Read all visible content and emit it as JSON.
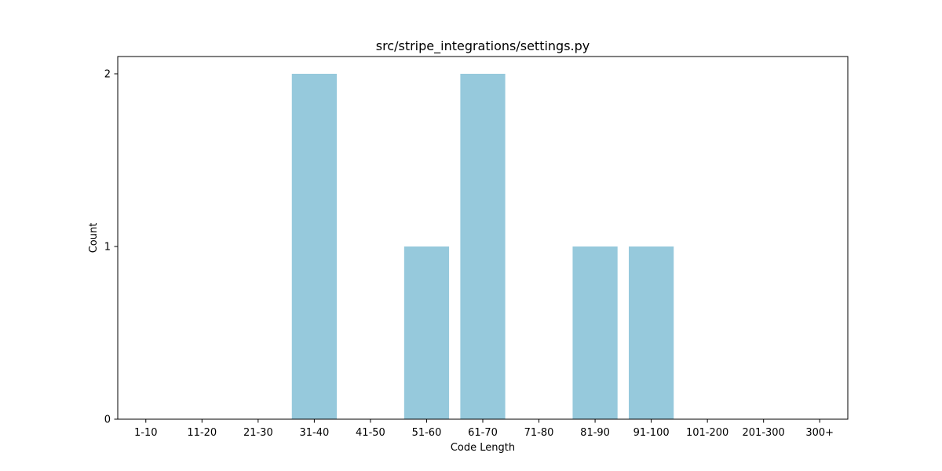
{
  "chart_data": {
    "type": "bar",
    "title": "src/stripe_integrations/settings.py",
    "xlabel": "Code Length",
    "ylabel": "Count",
    "categories": [
      "1-10",
      "11-20",
      "21-30",
      "31-40",
      "41-50",
      "51-60",
      "61-70",
      "71-80",
      "81-90",
      "91-100",
      "101-200",
      "201-300",
      "300+"
    ],
    "values": [
      0,
      0,
      0,
      2,
      0,
      1,
      2,
      0,
      1,
      1,
      0,
      0,
      0
    ],
    "ylim": [
      0,
      2.1
    ],
    "yticks": [
      0,
      1,
      2
    ],
    "grid": false,
    "bar_color": "#96c9dc"
  }
}
